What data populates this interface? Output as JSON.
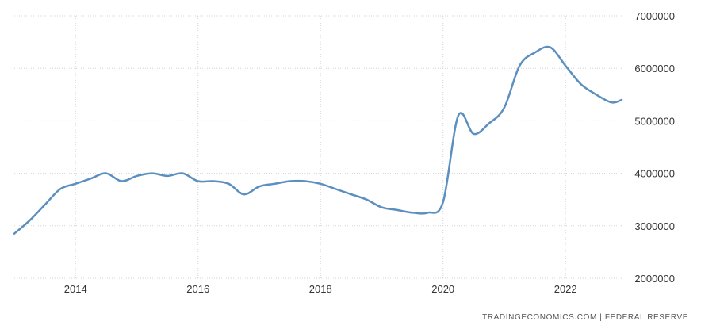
{
  "chart_data": {
    "type": "line",
    "title": "",
    "xlabel": "",
    "ylabel": "",
    "x_ticks": [
      "2014",
      "2016",
      "2018",
      "2020",
      "2022"
    ],
    "y_ticks": [
      "2000000",
      "3000000",
      "4000000",
      "5000000",
      "6000000",
      "7000000"
    ],
    "ylim": [
      2000000,
      7000000
    ],
    "xlim": [
      "2013-01",
      "2022-12"
    ],
    "grid": true,
    "y_axis_position": "right",
    "line_color": "#5a8fbf",
    "series": [
      {
        "x": [
          "2013-01",
          "2013-04",
          "2013-07",
          "2013-10",
          "2014-01",
          "2014-04",
          "2014-07",
          "2014-10",
          "2015-01",
          "2015-04",
          "2015-07",
          "2015-10",
          "2016-01",
          "2016-04",
          "2016-07",
          "2016-10",
          "2017-01",
          "2017-04",
          "2017-07",
          "2017-10",
          "2018-01",
          "2018-04",
          "2018-07",
          "2018-10",
          "2019-01",
          "2019-04",
          "2019-07",
          "2019-10",
          "2020-01",
          "2020-04",
          "2020-07",
          "2020-10",
          "2021-01",
          "2021-04",
          "2021-07",
          "2021-10",
          "2022-01",
          "2022-04",
          "2022-07",
          "2022-10",
          "2022-12"
        ],
        "values": [
          2850000,
          3100000,
          3400000,
          3700000,
          3800000,
          3900000,
          4000000,
          3850000,
          3950000,
          4000000,
          3950000,
          4000000,
          3850000,
          3850000,
          3800000,
          3600000,
          3750000,
          3800000,
          3850000,
          3850000,
          3800000,
          3700000,
          3600000,
          3500000,
          3350000,
          3300000,
          3250000,
          3250000,
          3450000,
          5100000,
          4750000,
          4950000,
          5250000,
          6050000,
          6300000,
          6400000,
          6050000,
          5700000,
          5500000,
          5350000,
          5400000
        ]
      }
    ]
  },
  "source": "TRADINGECONOMICS.COM  |  FEDERAL RESERVE"
}
